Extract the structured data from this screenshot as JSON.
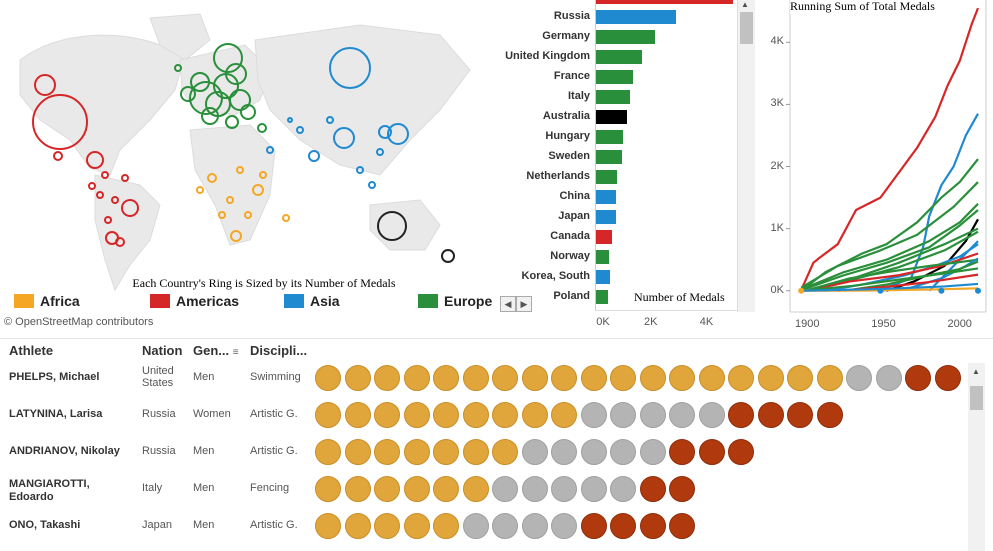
{
  "map": {
    "caption": "Each Country's Ring is Sized by its Number of Medals",
    "attribution": "© OpenStreetMap contributors",
    "legend": [
      {
        "label": "Africa",
        "color": "#f5a623"
      },
      {
        "label": "Americas",
        "color": "#d62728"
      },
      {
        "label": "Asia",
        "color": "#1f8ad0"
      },
      {
        "label": "Europe",
        "color": "#2a8f3a"
      }
    ],
    "scroll_left": "◀",
    "scroll_right": "▶"
  },
  "chart_data": [
    {
      "type": "bar",
      "orientation": "horizontal",
      "measure_label": "Number of Medals",
      "categories": [
        "Russia",
        "Germany",
        "United Kingdom",
        "France",
        "Italy",
        "Australia",
        "Hungary",
        "Sweden",
        "Netherlands",
        "China",
        "Japan",
        "Canada",
        "Norway",
        "Korea, South",
        "Poland"
      ],
      "values": [
        2900,
        2150,
        1700,
        1350,
        1250,
        1150,
        1000,
        980,
        800,
        750,
        760,
        600,
        500,
        520,
        470
      ],
      "colors": [
        "#1f8ad0",
        "#2a8f3a",
        "#2a8f3a",
        "#2a8f3a",
        "#2a8f3a",
        "#000000",
        "#2a8f3a",
        "#2a8f3a",
        "#2a8f3a",
        "#1f8ad0",
        "#1f8ad0",
        "#d62728",
        "#2a8f3a",
        "#1f8ad0",
        "#2a8f3a"
      ],
      "xticks": [
        "0K",
        "2K",
        "4K"
      ],
      "xlim": [
        0,
        5200
      ]
    },
    {
      "type": "line",
      "title": "Running Sum of Total Medals",
      "yticks": [
        "0K",
        "1K",
        "2K",
        "3K",
        "4K"
      ],
      "xticks": [
        "1900",
        "1950",
        "2000"
      ],
      "xlim": [
        1890,
        2012
      ],
      "ylim": [
        -100,
        4600
      ],
      "series": [
        {
          "color": "#d62728",
          "x": [
            1896,
            1904,
            1908,
            1920,
            1932,
            1948,
            1960,
            1972,
            1984,
            1992,
            2000,
            2008,
            2012
          ],
          "y": [
            10,
            450,
            530,
            750,
            1300,
            1500,
            1900,
            2300,
            2800,
            3300,
            3700,
            4300,
            4550
          ]
        },
        {
          "color": "#1f8ad0",
          "x": [
            1952,
            1968,
            1976,
            1980,
            1988,
            1996,
            2004,
            2012
          ],
          "y": [
            50,
            200,
            700,
            1200,
            1700,
            2000,
            2500,
            2850
          ]
        },
        {
          "color": "#2a8f3a",
          "x": [
            1896,
            1912,
            1936,
            1952,
            1972,
            1988,
            2000,
            2012
          ],
          "y": [
            0,
            300,
            600,
            750,
            1100,
            1500,
            1750,
            2120
          ]
        },
        {
          "color": "#2a8f3a",
          "x": [
            1896,
            1920,
            1948,
            1972,
            1996,
            2012
          ],
          "y": [
            50,
            400,
            650,
            900,
            1350,
            1750
          ]
        },
        {
          "color": "#2a8f3a",
          "x": [
            1896,
            1924,
            1952,
            1980,
            2000,
            2012
          ],
          "y": [
            20,
            300,
            500,
            800,
            1100,
            1400
          ]
        },
        {
          "color": "#2a8f3a",
          "x": [
            1896,
            1924,
            1952,
            1980,
            2000,
            2012
          ],
          "y": [
            10,
            250,
            450,
            700,
            1050,
            1300
          ]
        },
        {
          "color": "#000000",
          "x": [
            1952,
            1970,
            1990,
            2004,
            2012
          ],
          "y": [
            0,
            150,
            400,
            800,
            1150
          ]
        },
        {
          "color": "#2a8f3a",
          "x": [
            1900,
            1930,
            1960,
            1990,
            2012
          ],
          "y": [
            0,
            200,
            450,
            750,
            1000
          ]
        },
        {
          "color": "#2a8f3a",
          "x": [
            1900,
            1930,
            1960,
            1990,
            2012
          ],
          "y": [
            0,
            180,
            380,
            650,
            950
          ]
        },
        {
          "color": "#1f8ad0",
          "x": [
            1980,
            1992,
            2004,
            2012
          ],
          "y": [
            0,
            300,
            600,
            800
          ]
        },
        {
          "color": "#1f8ad0",
          "x": [
            1912,
            1936,
            1964,
            1984,
            2000,
            2012
          ],
          "y": [
            0,
            100,
            250,
            400,
            550,
            750
          ]
        },
        {
          "color": "#d62728",
          "x": [
            1900,
            1928,
            1960,
            1988,
            2012
          ],
          "y": [
            0,
            150,
            250,
            400,
            600
          ]
        },
        {
          "color": "#2a8f3a",
          "x": [
            1900,
            1928,
            1952,
            1980,
            2012
          ],
          "y": [
            10,
            200,
            300,
            400,
            500
          ]
        },
        {
          "color": "#1f8ad0",
          "x": [
            1948,
            1968,
            1988,
            2004,
            2012
          ],
          "y": [
            0,
            50,
            200,
            400,
            520
          ]
        },
        {
          "color": "#2a8f3a",
          "x": [
            1924,
            1952,
            1980,
            2000,
            2012
          ],
          "y": [
            0,
            100,
            250,
            350,
            470
          ]
        },
        {
          "color": "#2a8f3a",
          "x": [
            1896,
            1930,
            1960,
            1990,
            2012
          ],
          "y": [
            0,
            80,
            180,
            280,
            360
          ]
        },
        {
          "color": "#d62728",
          "x": [
            1920,
            1950,
            1980,
            2012
          ],
          "y": [
            0,
            60,
            140,
            260
          ]
        },
        {
          "color": "#f5a623",
          "x": [
            1896,
            1940,
            1980,
            2012
          ],
          "y": [
            0,
            5,
            20,
            40
          ]
        },
        {
          "color": "#1f8ad0",
          "x": [
            1896,
            1950,
            1990,
            2012
          ],
          "y": [
            0,
            30,
            70,
            110
          ]
        }
      ]
    }
  ],
  "table": {
    "headers": {
      "athlete": "Athlete",
      "nation": "Nation",
      "gender": "Gen...",
      "discipline": "Discipli..."
    },
    "rows": [
      {
        "athlete": "PHELPS, Michael",
        "nation": "United States",
        "gender": "Men",
        "discipline": "Swimming",
        "gold": 18,
        "silver": 2,
        "bronze": 2
      },
      {
        "athlete": "LATYNINA, Larisa",
        "nation": "Russia",
        "gender": "Women",
        "discipline": "Artistic G.",
        "gold": 9,
        "silver": 5,
        "bronze": 4
      },
      {
        "athlete": "ANDRIANOV, Nikolay",
        "nation": "Russia",
        "gender": "Men",
        "discipline": "Artistic G.",
        "gold": 7,
        "silver": 5,
        "bronze": 3
      },
      {
        "athlete": "MANGIAROTTI, Edoardo",
        "nation": "Italy",
        "gender": "Men",
        "discipline": "Fencing",
        "gold": 6,
        "silver": 5,
        "bronze": 2
      },
      {
        "athlete": "ONO, Takashi",
        "nation": "Japan",
        "gender": "Men",
        "discipline": "Artistic G.",
        "gold": 5,
        "silver": 4,
        "bronze": 4
      }
    ]
  },
  "colors": {
    "gold": "#e1a63b",
    "silver": "#b4b4b4",
    "bronze": "#b03a0e"
  }
}
